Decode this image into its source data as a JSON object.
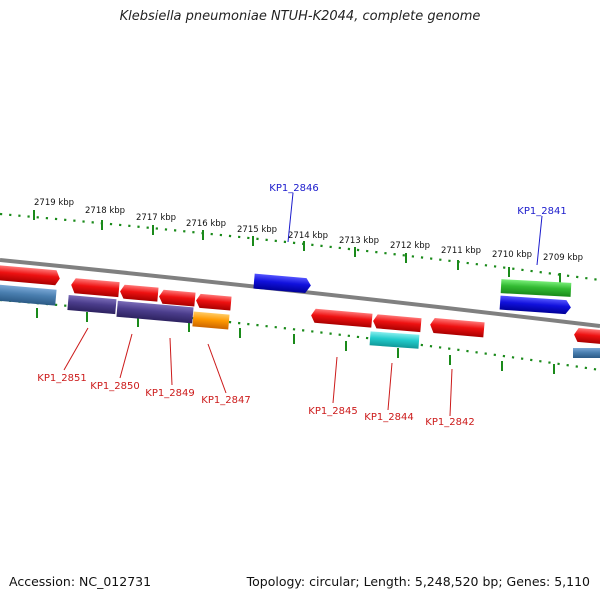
{
  "title": "Klebsiella pneumoniae NTUH-K2044, complete genome",
  "footer": {
    "accession": "Accession: NC_012731",
    "topology": "Topology: circular; Length: 5,248,520 bp; Genes: 5,110"
  },
  "scale_ticks": [
    "2719 kbp",
    "2718 kbp",
    "2717 kbp",
    "2716 kbp",
    "2715 kbp",
    "2714 kbp",
    "2713 kbp",
    "2712 kbp",
    "2711 kbp",
    "2710 kbp",
    "2709 kbp"
  ],
  "gene_labels": [
    {
      "text": "KP1_2846",
      "color": "#1a1acc"
    },
    {
      "text": "KP1_2841",
      "color": "#1a1acc"
    },
    {
      "text": "KP1_2851",
      "color": "#cc1a1a"
    },
    {
      "text": "KP1_2850",
      "color": "#cc1a1a"
    },
    {
      "text": "KP1_2849",
      "color": "#cc1a1a"
    },
    {
      "text": "KP1_2847",
      "color": "#cc1a1a"
    },
    {
      "text": "KP1_2845",
      "color": "#cc1a1a"
    },
    {
      "text": "KP1_2844",
      "color": "#cc1a1a"
    },
    {
      "text": "KP1_2842",
      "color": "#cc1a1a"
    }
  ],
  "colors": {
    "red": "#ee1111",
    "blue": "#1111dd",
    "green": "#33bb33",
    "steelblue": "#4a7fb0",
    "purple": "#4b3d8c",
    "orange": "#ff9900",
    "cyan": "#22cccc",
    "tick_green": "#1a8a1a",
    "backbone": "#888888"
  }
}
